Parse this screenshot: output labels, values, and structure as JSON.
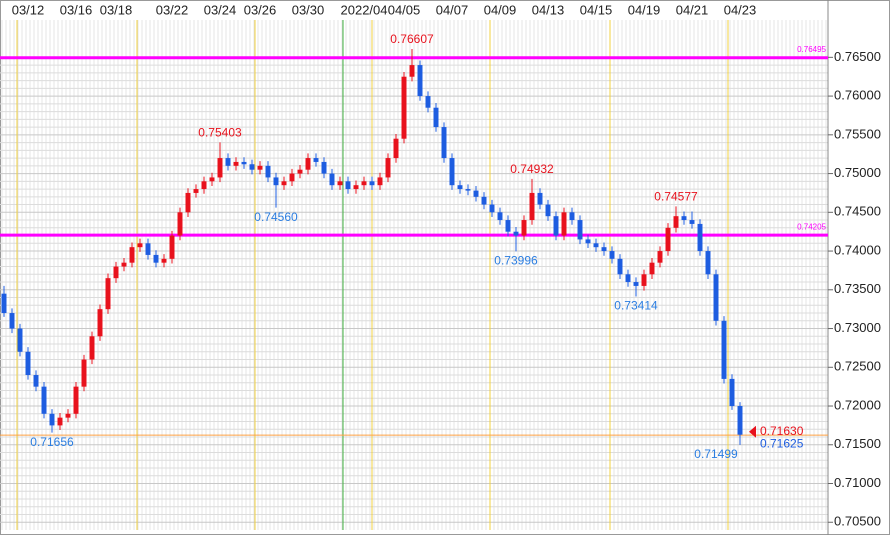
{
  "chart_data": {
    "type": "candlestick",
    "categories": [
      null,
      null,
      null,
      "03/12",
      null,
      null,
      null,
      null,
      null,
      "03/16",
      null,
      null,
      null,
      null,
      "03/18",
      null,
      null,
      null,
      null,
      null,
      null,
      "03/22",
      null,
      null,
      null,
      null,
      null,
      "03/24",
      null,
      null,
      null,
      null,
      "03/26",
      null,
      null,
      null,
      null,
      null,
      "03/30",
      null,
      null,
      null,
      null,
      null,
      null,
      "2022/04",
      null,
      null,
      null,
      null,
      "04/05",
      null,
      null,
      null,
      null,
      null,
      "04/07",
      null,
      null,
      null,
      null,
      null,
      "04/09",
      null,
      null,
      null,
      null,
      null,
      "04/13",
      null,
      null,
      null,
      null,
      null,
      "04/15",
      null,
      null,
      null,
      null,
      null,
      "04/19",
      null,
      null,
      null,
      null,
      null,
      "04/21",
      null,
      null,
      null,
      null,
      null,
      "04/23"
    ],
    "open": [
      0.7345,
      0.732,
      0.73,
      0.727,
      0.724,
      0.7225,
      0.719,
      0.7175,
      0.7185,
      0.719,
      0.7225,
      0.726,
      0.729,
      0.7325,
      0.7365,
      0.738,
      0.7385,
      0.7405,
      0.741,
      0.7395,
      0.7385,
      0.739,
      0.742,
      0.745,
      0.7475,
      0.748,
      0.749,
      0.7495,
      0.752,
      0.751,
      0.7515,
      0.7512,
      0.7505,
      0.751,
      0.7495,
      0.7485,
      0.749,
      0.75,
      0.7505,
      0.752,
      0.7515,
      0.75,
      0.7485,
      0.749,
      0.748,
      0.7485,
      0.749,
      0.7485,
      0.7495,
      0.752,
      0.7545,
      0.7625,
      0.764,
      0.76,
      0.7585,
      0.756,
      0.752,
      0.7485,
      0.748,
      0.7478,
      0.747,
      0.746,
      0.745,
      0.744,
      0.7425,
      0.742,
      0.744,
      0.7475,
      0.746,
      0.7445,
      0.742,
      0.745,
      0.744,
      0.7415,
      0.741,
      0.7405,
      0.74,
      0.739,
      0.737,
      0.736,
      0.7355,
      0.737,
      0.7385,
      0.74,
      0.743,
      0.7445,
      0.744,
      0.7435,
      0.74,
      0.737,
      0.731,
      0.7235,
      0.72
    ],
    "high": [
      0.7355,
      0.7326,
      0.7306,
      0.7276,
      0.7246,
      0.7231,
      0.7196,
      0.7191,
      0.7196,
      0.7231,
      0.7266,
      0.7296,
      0.7331,
      0.7371,
      0.7386,
      0.7391,
      0.7411,
      0.7416,
      0.7416,
      0.7401,
      0.7396,
      0.7426,
      0.7456,
      0.7481,
      0.7486,
      0.7496,
      0.7501,
      0.75403,
      0.7526,
      0.7521,
      0.7521,
      0.7518,
      0.7516,
      0.7516,
      0.7501,
      0.7496,
      0.7506,
      0.7511,
      0.7526,
      0.7526,
      0.7521,
      0.7506,
      0.7496,
      0.7496,
      0.7491,
      0.7496,
      0.7496,
      0.7501,
      0.7526,
      0.7551,
      0.7631,
      0.76607,
      0.7646,
      0.7606,
      0.7591,
      0.7566,
      0.7526,
      0.7491,
      0.7486,
      0.7484,
      0.7476,
      0.7466,
      0.7456,
      0.7446,
      0.7431,
      0.7446,
      0.74932,
      0.7481,
      0.7466,
      0.7451,
      0.7456,
      0.7456,
      0.7446,
      0.7421,
      0.7416,
      0.7411,
      0.7406,
      0.7396,
      0.7376,
      0.7366,
      0.7376,
      0.7391,
      0.7406,
      0.7436,
      0.74577,
      0.7451,
      0.7451,
      0.7441,
      0.7406,
      0.7376,
      0.7316,
      0.7241,
      0.7205
    ],
    "low": [
      0.7315,
      0.7294,
      0.7264,
      0.7234,
      0.7219,
      0.7184,
      0.71656,
      0.7169,
      0.7179,
      0.7184,
      0.7219,
      0.7254,
      0.7284,
      0.7319,
      0.7359,
      0.7374,
      0.7379,
      0.7399,
      0.7389,
      0.7379,
      0.7379,
      0.7384,
      0.7414,
      0.7444,
      0.7469,
      0.7474,
      0.7484,
      0.7489,
      0.7504,
      0.7504,
      0.7506,
      0.7499,
      0.7499,
      0.7489,
      0.7456,
      0.7479,
      0.7484,
      0.7494,
      0.7499,
      0.7509,
      0.7494,
      0.7479,
      0.7479,
      0.7474,
      0.7474,
      0.7479,
      0.7479,
      0.7479,
      0.7489,
      0.7514,
      0.7539,
      0.7619,
      0.7594,
      0.7579,
      0.7554,
      0.7514,
      0.7479,
      0.7474,
      0.7472,
      0.7464,
      0.7454,
      0.7444,
      0.7434,
      0.7419,
      0.73996,
      0.7414,
      0.7434,
      0.7454,
      0.7439,
      0.7414,
      0.7414,
      0.7434,
      0.7409,
      0.7404,
      0.7399,
      0.7394,
      0.7384,
      0.7364,
      0.7354,
      0.73414,
      0.7349,
      0.7364,
      0.7379,
      0.7394,
      0.7424,
      0.7434,
      0.7429,
      0.7394,
      0.7364,
      0.7304,
      0.7229,
      0.7195,
      0.71499
    ],
    "close": [
      0.732,
      0.73,
      0.727,
      0.724,
      0.7225,
      0.719,
      0.7175,
      0.7185,
      0.719,
      0.7225,
      0.726,
      0.729,
      0.7325,
      0.7365,
      0.738,
      0.7385,
      0.7405,
      0.741,
      0.7395,
      0.7385,
      0.739,
      0.742,
      0.745,
      0.7475,
      0.748,
      0.749,
      0.7495,
      0.752,
      0.751,
      0.7515,
      0.7512,
      0.7505,
      0.751,
      0.7495,
      0.7485,
      0.749,
      0.75,
      0.7505,
      0.752,
      0.7515,
      0.75,
      0.7485,
      0.749,
      0.748,
      0.7485,
      0.749,
      0.7485,
      0.7495,
      0.752,
      0.7545,
      0.7625,
      0.764,
      0.76,
      0.7585,
      0.756,
      0.752,
      0.7485,
      0.748,
      0.7478,
      0.747,
      0.746,
      0.745,
      0.744,
      0.7425,
      0.742,
      0.744,
      0.7475,
      0.746,
      0.7445,
      0.742,
      0.745,
      0.744,
      0.7415,
      0.741,
      0.7405,
      0.74,
      0.739,
      0.737,
      0.736,
      0.7355,
      0.737,
      0.7385,
      0.74,
      0.743,
      0.7445,
      0.744,
      0.7435,
      0.74,
      0.737,
      0.731,
      0.7235,
      0.72,
      0.7163
    ],
    "up_color": "#e8121d",
    "down_color": "#1e5de0",
    "ylim": [
      0.704,
      0.7724
    ],
    "yticks": [
      {
        "value": 0.705,
        "label": "0.70500"
      },
      {
        "value": 0.71,
        "label": "0.71000"
      },
      {
        "value": 0.715,
        "label": "0.71500"
      },
      {
        "value": 0.72,
        "label": "0.72000"
      },
      {
        "value": 0.725,
        "label": "0.72500"
      },
      {
        "value": 0.73,
        "label": "0.73000"
      },
      {
        "value": 0.735,
        "label": "0.73500"
      },
      {
        "value": 0.74,
        "label": "0.74000"
      },
      {
        "value": 0.745,
        "label": "0.74500"
      },
      {
        "value": 0.75,
        "label": "0.75000"
      },
      {
        "value": 0.755,
        "label": "0.75500"
      },
      {
        "value": 0.76,
        "label": "0.76000"
      },
      {
        "value": 0.765,
        "label": "0.76500"
      }
    ],
    "grid": true,
    "hlines": [
      {
        "value": 0.76495,
        "color": "#ff00ff"
      },
      {
        "value": 0.74205,
        "color": "#ff00ff"
      }
    ],
    "annotations": [
      {
        "index": 51,
        "at": "high",
        "text": "0.76607",
        "color": "#e8121d"
      },
      {
        "index": 27,
        "at": "high",
        "text": "0.75403",
        "color": "#e8121d"
      },
      {
        "index": 66,
        "at": "high",
        "text": "0.74932",
        "color": "#e8121d"
      },
      {
        "index": 84,
        "at": "high",
        "text": "0.74577",
        "color": "#e8121d"
      },
      {
        "index": 34,
        "at": "low",
        "text": "0.74560",
        "color": "#2a7de1"
      },
      {
        "index": 64,
        "at": "low",
        "text": "0.73996",
        "color": "#2a7de1"
      },
      {
        "index": 79,
        "at": "low",
        "text": "0.73414",
        "color": "#2a7de1"
      },
      {
        "index": 6,
        "at": "low",
        "text": "0.71656",
        "color": "#2a7de1"
      },
      {
        "index": 92,
        "at": "low",
        "text": "0.71499",
        "color": "#2a7de1"
      }
    ],
    "ask": {
      "value": 0.7163,
      "label": "0.71630"
    },
    "bid": 0.71625,
    "ask_color": "#e8121d",
    "bid_color": "#1e5de0",
    "price_line_color": "#ffa040"
  }
}
